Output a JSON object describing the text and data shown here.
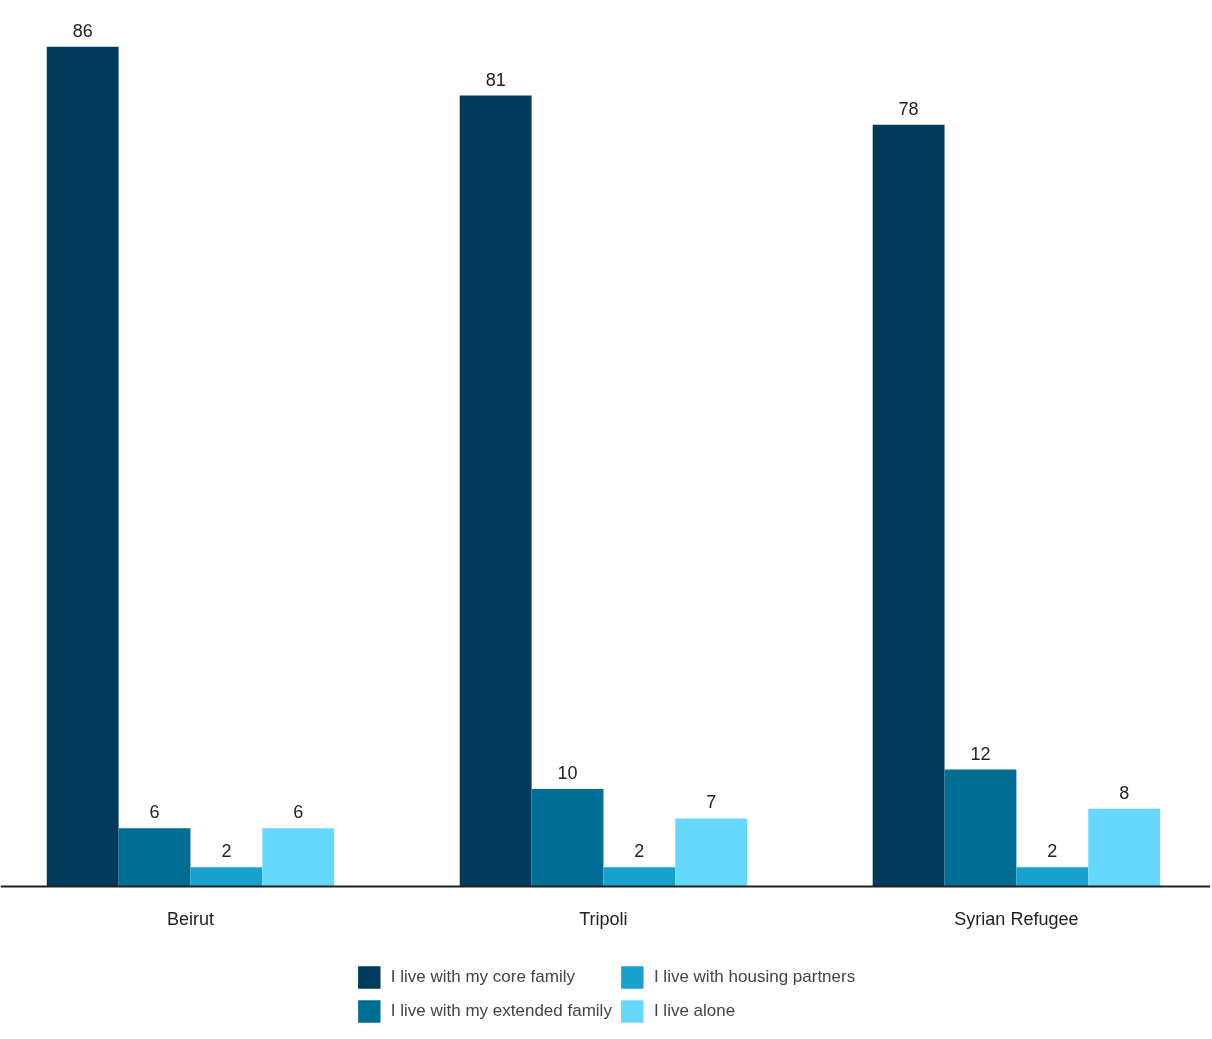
{
  "chart_data": {
    "type": "bar",
    "categories": [
      "Beirut",
      "Tripoli",
      "Syrian Refugee"
    ],
    "series": [
      {
        "name": "I live with my core family",
        "color": "#003b5c",
        "values": [
          86,
          81,
          78
        ]
      },
      {
        "name": "I live with my extended family",
        "color": "#006d94",
        "values": [
          6,
          10,
          12
        ]
      },
      {
        "name": "I live with housing partners",
        "color": "#18a1cf",
        "values": [
          2,
          2,
          2
        ]
      },
      {
        "name": "I live alone",
        "color": "#66d8fd",
        "values": [
          6,
          7,
          8
        ]
      }
    ],
    "data_labels": true,
    "grid": false,
    "legend": "bottom",
    "tick_labels": "x"
  }
}
